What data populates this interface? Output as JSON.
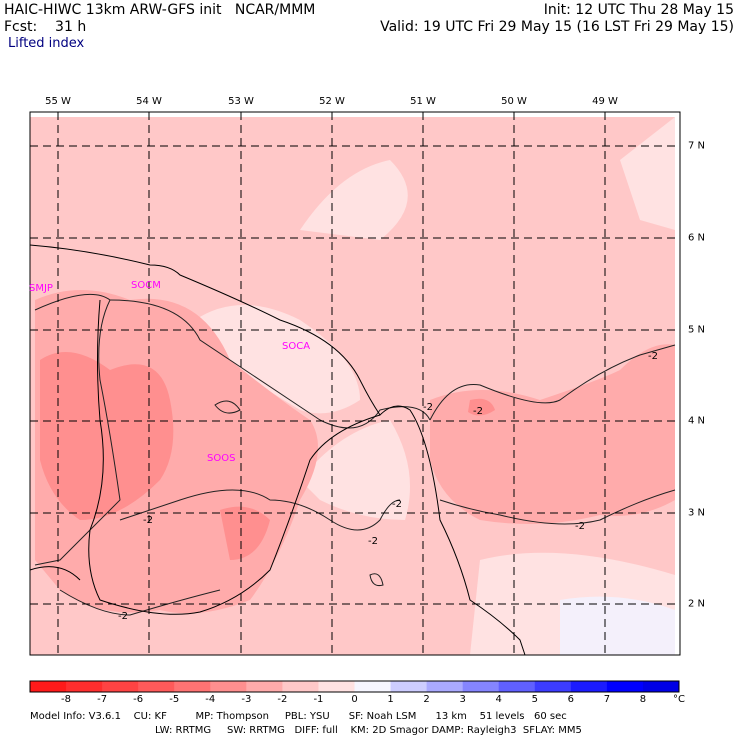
{
  "header": {
    "left_line1": "HAIC-HIWC 13km ARW-GFS init   NCAR/MMM",
    "left_line2": "Fcst:    31 h",
    "right_line1": "Init: 12 UTC Thu 28 May 15",
    "right_line2": "Valid: 19 UTC Fri 29 May 15 (16 LST Fri 29 May 15)",
    "field": "Lifted index"
  },
  "map": {
    "lon_labels": [
      "55 W",
      "54 W",
      "53 W",
      "52 W",
      "51 W",
      "50 W",
      "49 W"
    ],
    "lat_labels": [
      "7 N",
      "6 N",
      "5 N",
      "4 N",
      "3 N",
      "2 N"
    ],
    "sites": [
      "SMJP",
      "SOCM",
      "SOCA",
      "SOOS"
    ],
    "contour_labels": [
      "-2",
      "-2",
      "-2",
      "-2",
      "-2",
      "-2",
      "-2",
      "-2"
    ]
  },
  "colorbar": {
    "ticks": [
      "-8",
      "-7",
      "-6",
      "-5",
      "-4",
      "-3",
      "-2",
      "-1",
      "0",
      "1",
      "2",
      "3",
      "4",
      "5",
      "6",
      "7",
      "8"
    ],
    "unit": "°C",
    "colors": [
      "#ff1a1a",
      "#ff2e2e",
      "#ff4343",
      "#ff5a5a",
      "#ff7373",
      "#ff8f8f",
      "#ffabab",
      "#ffc8c8",
      "#ffe2e2",
      "#f6f6ff",
      "#cdcdff",
      "#aaaaff",
      "#8585ff",
      "#6060ff",
      "#3c3cff",
      "#1b1bff",
      "#0000ff",
      "#0000e6"
    ]
  },
  "footer": {
    "line1": "Model Info: V3.6.1    CU: KF         MP: Thompson     PBL: YSU      SF: Noah LSM      13 km    51 levels   60 sec",
    "line2": "LW: RRTMG     SW: RRTMG   DIFF: full    KM: 2D Smagor DAMP: Rayleigh3  SFLAY: MM5"
  }
}
